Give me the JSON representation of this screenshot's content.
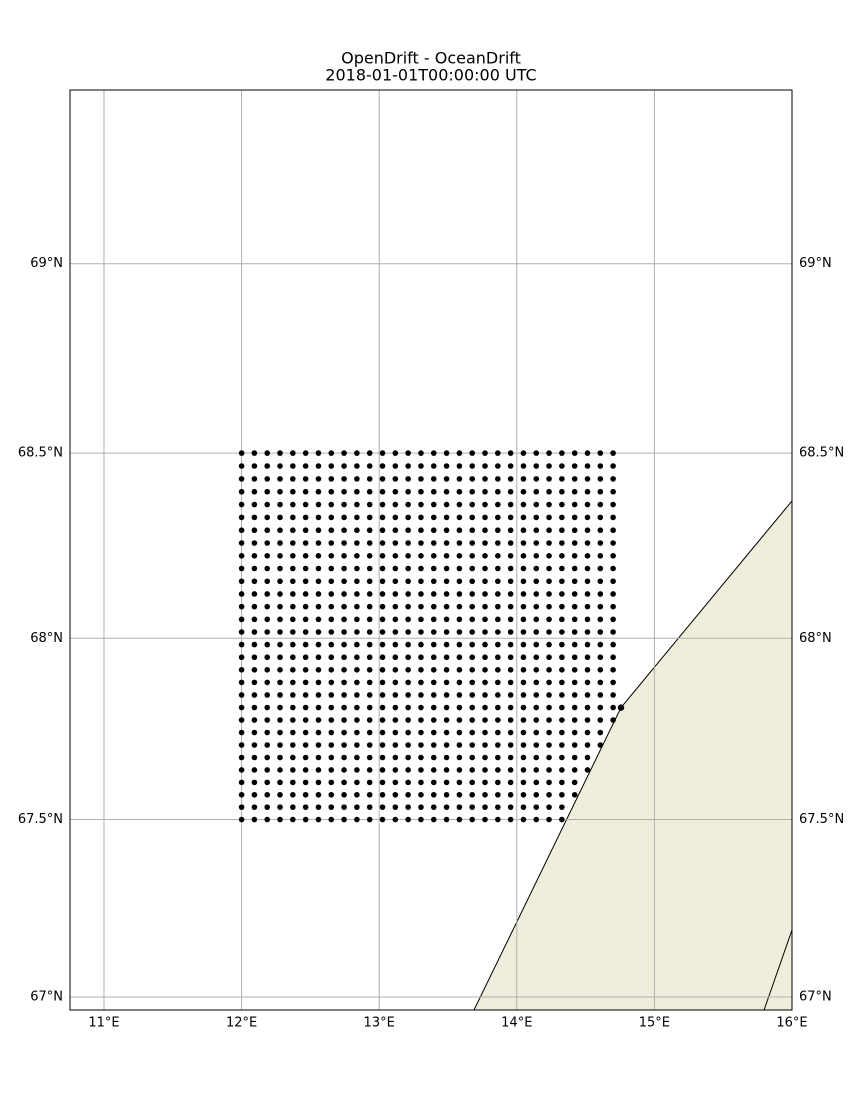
{
  "chart_data": {
    "type": "map",
    "title": "OpenDrift - OceanDrift",
    "subtitle": "2018-01-01T00:00:00 UTC",
    "xlim": [
      10.753,
      16.0
    ],
    "ylim": [
      66.963,
      69.449
    ],
    "projection": "mercator",
    "grid": true,
    "xticks": [
      {
        "value": 11,
        "label": "11°E"
      },
      {
        "value": 12,
        "label": "12°E"
      },
      {
        "value": 13,
        "label": "13°E"
      },
      {
        "value": 14,
        "label": "14°E"
      },
      {
        "value": 15,
        "label": "15°E"
      },
      {
        "value": 16,
        "label": "16°E"
      }
    ],
    "yticks": [
      {
        "value": 67,
        "label": "67°N"
      },
      {
        "value": 67.5,
        "label": "67.5°N"
      },
      {
        "value": 68,
        "label": "68°N"
      },
      {
        "value": 68.5,
        "label": "68.5°N"
      },
      {
        "value": 69,
        "label": "69°N"
      }
    ],
    "land_color": "#efeddb",
    "point_color": "#000000",
    "particles": {
      "lon": [
        12,
        12.0931,
        12.1862,
        12.2793,
        12.3724,
        12.4655,
        12.5586,
        12.6517,
        12.7448,
        12.8379,
        12.931,
        13.0241,
        13.1172,
        13.2103,
        13.3034,
        13.3966,
        13.4897,
        13.5828,
        13.6759,
        13.769,
        13.8621,
        13.9552,
        14.0483,
        14.1414,
        14.2345,
        14.3276,
        14.4207,
        14.5138,
        14.6069,
        14.7
      ],
      "lat": [
        67.5,
        67.5345,
        67.569,
        67.6034,
        67.6379,
        67.6724,
        67.7069,
        67.7414,
        67.7759,
        67.8103,
        67.8448,
        67.8793,
        67.9138,
        67.9483,
        67.9828,
        68.0172,
        68.0517,
        68.0862,
        68.1207,
        68.1552,
        68.1897,
        68.2241,
        68.2586,
        68.2931,
        68.3276,
        68.3621,
        68.3966,
        68.431,
        68.4655,
        68.5
      ],
      "count_per_lat": [
        26,
        26,
        27,
        27,
        28,
        28,
        29,
        29,
        30,
        30,
        30,
        30,
        30,
        30,
        30,
        30,
        30,
        30,
        30,
        30,
        30,
        30,
        30,
        30,
        30,
        30,
        30,
        30,
        30,
        30
      ]
    },
    "stranded": {
      "lon": [
        14.757
      ],
      "lat": [
        67.81
      ]
    },
    "coastlines": [
      {
        "lon": [
          13.689,
          14.757,
          16.0
        ],
        "lat": [
          66.963,
          67.81,
          68.372
        ]
      },
      {
        "lon": [
          15.797,
          16.0
        ],
        "lat": [
          66.963,
          67.19
        ]
      }
    ]
  }
}
